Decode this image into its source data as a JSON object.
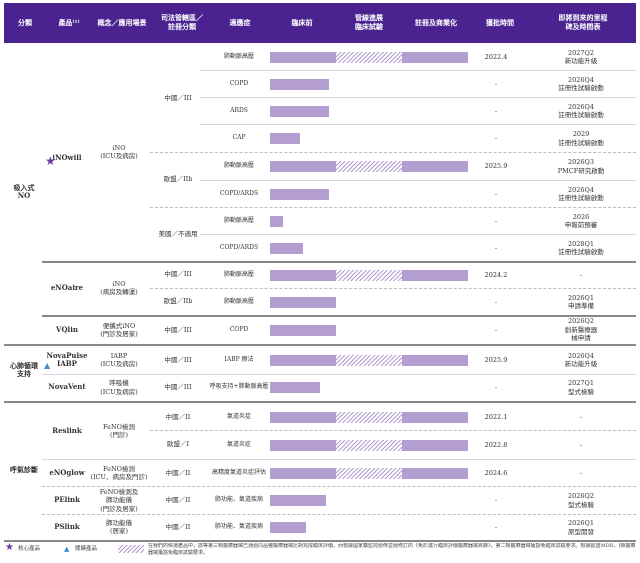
{
  "header": {
    "category": "分類",
    "product": "產品⁽¹⁾",
    "concept": "概念／應用場景",
    "jurisdiction": "司法管轄區／\n註冊分類",
    "indication": "適應症",
    "preclinical": "臨床前",
    "clinical": "管線進展\n臨床試驗",
    "registration": "註冊及商業化",
    "approval": "獲批時間",
    "milestone": "即將到來的里程\n碑及時間表"
  },
  "categories": {
    "inhaled_no": "吸入式\nNO",
    "cardio": "心肺循環\n支持",
    "breath": "呼氣診斷"
  },
  "products": {
    "inowill": {
      "name": "iNOwill",
      "concept": "iNO\n(ICU及病房)"
    },
    "enoaire": {
      "name": "eNOaire",
      "concept": "iNO\n(病房及轉運)"
    },
    "vqlin": {
      "name": "VQlin",
      "concept": "便攜式iNO\n(門診及居家)"
    },
    "novapulse": {
      "name": "NovaPulse\nIABP",
      "concept": "IABP\n(ICU及病房)"
    },
    "novavent": {
      "name": "NovaVent",
      "concept": "呼吸機\n(ICU及病房)"
    },
    "reslink": {
      "name": "Reslink",
      "concept": "FeNO檢測\n(門診)"
    },
    "enoglow": {
      "name": "eNOglow",
      "concept": "FeNO檢測\n(ICU、病房及門診)"
    },
    "pelink": {
      "name": "PElink",
      "concept": "FeNO檢測及\n肺功能儀\n(門診及居家)"
    },
    "pslink": {
      "name": "PSlink",
      "concept": "肺功能儀\n(居家)"
    }
  },
  "jurisdictions": {
    "cn3_a": "中國／III",
    "eu2b_a": "歐盟／IIb",
    "us_na": "美國／不適用",
    "cn3_b": "中國／III",
    "eu2b_b": "歐盟／IIb",
    "cn3_c": "中國／III",
    "cn3_d": "中國／III",
    "cn3_e": "中國／III",
    "cn2_a": "中國／II",
    "eu1": "歐盟／I",
    "cn2_b": "中國／II",
    "cn2_c": "中國／II",
    "cn2_d": "中國／II"
  },
  "rows": [
    {
      "indication": "肺動脈高壓",
      "approval": "2022.4",
      "milestone": "2027Q2\n新功能升級",
      "progress": 3
    },
    {
      "indication": "COPD",
      "approval": "-",
      "milestone": "2026Q4\n註冊性試驗啟動",
      "progress": 0.9
    },
    {
      "indication": "ARDS",
      "approval": "-",
      "milestone": "2026Q4\n註冊性試驗啟動",
      "progress": 0.9
    },
    {
      "indication": "CAP",
      "approval": "-",
      "milestone": "2029\n註冊性試驗啟動",
      "progress": 0.45
    },
    {
      "indication": "肺動脈高壓",
      "approval": "2025.9",
      "milestone": "2026Q3\nPMCF研究啟動",
      "progress": 3
    },
    {
      "indication": "COPD/ARDS",
      "approval": "-",
      "milestone": "2026Q4\n註冊性試驗啟動",
      "progress": 0.9
    },
    {
      "indication": "肺動脈高壓",
      "approval": "-",
      "milestone": "2026\n申報前預審",
      "progress": 0.2
    },
    {
      "indication": "COPD/ARDS",
      "approval": "-",
      "milestone": "2028Q1\n註冊性試驗啟動",
      "progress": 0.5
    },
    {
      "indication": "肺動脈高壓",
      "approval": "2024.2",
      "milestone": "-",
      "progress": 3
    },
    {
      "indication": "肺動脈高壓",
      "approval": "-",
      "milestone": "2026Q1\n申請準備",
      "progress": 1
    },
    {
      "indication": "COPD",
      "approval": "-",
      "milestone": "2026Q2\n創新醫療器\n械申請",
      "progress": 1
    },
    {
      "indication": "IABP 療法",
      "approval": "2025.9",
      "milestone": "2026Q4\n新功能升級",
      "progress": 3
    },
    {
      "indication": "呼吸支持+肺動脈高壓",
      "approval": "-",
      "milestone": "2027Q1\n型式檢驗",
      "progress": 0.75
    },
    {
      "indication": "氣道炎症",
      "approval": "2022.1",
      "milestone": "-",
      "progress": 3
    },
    {
      "indication": "氣道炎症",
      "approval": "2022.8",
      "milestone": "-",
      "progress": 3
    },
    {
      "indication": "高精度氣道炎症評估",
      "approval": "2024.6",
      "milestone": "-",
      "progress": 3
    },
    {
      "indication": "肺功能、氣道疾病",
      "approval": "-",
      "milestone": "2026Q2\n型式檢驗",
      "progress": 0.85
    },
    {
      "indication": "肺功能、氣道疾病",
      "approval": "-",
      "milestone": "2026Q1\n原型開發",
      "progress": 0.55
    }
  ],
  "legend": {
    "core": "核心產品",
    "key": "關鍵產品",
    "note": "在我們的候選產品中，該等第三類醫療器械已通過同品種醫療器械比對完成臨床評價，而根據國家藥監局頒佈並經修訂的《免於進行臨床評價醫療器械目錄》，第二類醫療器械獲豁免臨床試驗要求。根據歐盟MDR，I類醫療器械獲豁免臨床試驗要求。"
  },
  "colors": {
    "header": "#4a2390",
    "bar": "#b39dd1",
    "star": "#6b3a9e",
    "triangle": "#3d8fd0"
  }
}
